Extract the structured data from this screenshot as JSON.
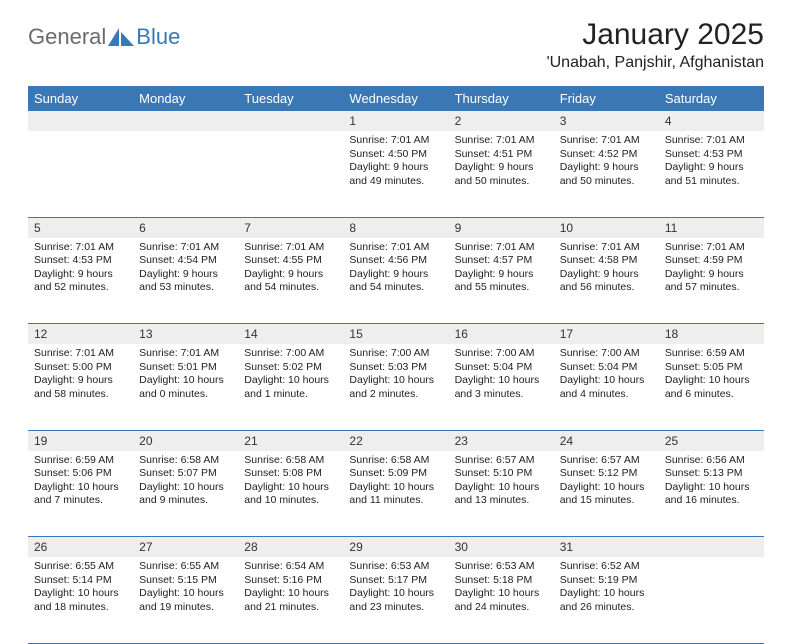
{
  "brand": {
    "part1": "General",
    "part2": "Blue"
  },
  "title": "January 2025",
  "location": "'Unabah, Panjshir, Afghanistan",
  "colors": {
    "header_bg": "#3a78b5",
    "header_text": "#ffffff",
    "daynum_bg": "#eeeeee",
    "border": "#3a78b5",
    "logo_grey": "#6b6b6b",
    "logo_blue": "#3a78b5",
    "page_bg": "#ffffff"
  },
  "fonts": {
    "title_size": 30,
    "location_size": 16,
    "dayheader_size": 13,
    "body_size": 10.5
  },
  "day_headers": [
    "Sunday",
    "Monday",
    "Tuesday",
    "Wednesday",
    "Thursday",
    "Friday",
    "Saturday"
  ],
  "weeks": [
    {
      "nums": [
        "",
        "",
        "",
        "1",
        "2",
        "3",
        "4"
      ],
      "cells": [
        null,
        null,
        null,
        {
          "sunrise": "Sunrise: 7:01 AM",
          "sunset": "Sunset: 4:50 PM",
          "daylight": "Daylight: 9 hours and 49 minutes."
        },
        {
          "sunrise": "Sunrise: 7:01 AM",
          "sunset": "Sunset: 4:51 PM",
          "daylight": "Daylight: 9 hours and 50 minutes."
        },
        {
          "sunrise": "Sunrise: 7:01 AM",
          "sunset": "Sunset: 4:52 PM",
          "daylight": "Daylight: 9 hours and 50 minutes."
        },
        {
          "sunrise": "Sunrise: 7:01 AM",
          "sunset": "Sunset: 4:53 PM",
          "daylight": "Daylight: 9 hours and 51 minutes."
        }
      ]
    },
    {
      "nums": [
        "5",
        "6",
        "7",
        "8",
        "9",
        "10",
        "11"
      ],
      "cells": [
        {
          "sunrise": "Sunrise: 7:01 AM",
          "sunset": "Sunset: 4:53 PM",
          "daylight": "Daylight: 9 hours and 52 minutes."
        },
        {
          "sunrise": "Sunrise: 7:01 AM",
          "sunset": "Sunset: 4:54 PM",
          "daylight": "Daylight: 9 hours and 53 minutes."
        },
        {
          "sunrise": "Sunrise: 7:01 AM",
          "sunset": "Sunset: 4:55 PM",
          "daylight": "Daylight: 9 hours and 54 minutes."
        },
        {
          "sunrise": "Sunrise: 7:01 AM",
          "sunset": "Sunset: 4:56 PM",
          "daylight": "Daylight: 9 hours and 54 minutes."
        },
        {
          "sunrise": "Sunrise: 7:01 AM",
          "sunset": "Sunset: 4:57 PM",
          "daylight": "Daylight: 9 hours and 55 minutes."
        },
        {
          "sunrise": "Sunrise: 7:01 AM",
          "sunset": "Sunset: 4:58 PM",
          "daylight": "Daylight: 9 hours and 56 minutes."
        },
        {
          "sunrise": "Sunrise: 7:01 AM",
          "sunset": "Sunset: 4:59 PM",
          "daylight": "Daylight: 9 hours and 57 minutes."
        }
      ]
    },
    {
      "nums": [
        "12",
        "13",
        "14",
        "15",
        "16",
        "17",
        "18"
      ],
      "cells": [
        {
          "sunrise": "Sunrise: 7:01 AM",
          "sunset": "Sunset: 5:00 PM",
          "daylight": "Daylight: 9 hours and 58 minutes."
        },
        {
          "sunrise": "Sunrise: 7:01 AM",
          "sunset": "Sunset: 5:01 PM",
          "daylight": "Daylight: 10 hours and 0 minutes."
        },
        {
          "sunrise": "Sunrise: 7:00 AM",
          "sunset": "Sunset: 5:02 PM",
          "daylight": "Daylight: 10 hours and 1 minute."
        },
        {
          "sunrise": "Sunrise: 7:00 AM",
          "sunset": "Sunset: 5:03 PM",
          "daylight": "Daylight: 10 hours and 2 minutes."
        },
        {
          "sunrise": "Sunrise: 7:00 AM",
          "sunset": "Sunset: 5:04 PM",
          "daylight": "Daylight: 10 hours and 3 minutes."
        },
        {
          "sunrise": "Sunrise: 7:00 AM",
          "sunset": "Sunset: 5:04 PM",
          "daylight": "Daylight: 10 hours and 4 minutes."
        },
        {
          "sunrise": "Sunrise: 6:59 AM",
          "sunset": "Sunset: 5:05 PM",
          "daylight": "Daylight: 10 hours and 6 minutes."
        }
      ]
    },
    {
      "nums": [
        "19",
        "20",
        "21",
        "22",
        "23",
        "24",
        "25"
      ],
      "cells": [
        {
          "sunrise": "Sunrise: 6:59 AM",
          "sunset": "Sunset: 5:06 PM",
          "daylight": "Daylight: 10 hours and 7 minutes."
        },
        {
          "sunrise": "Sunrise: 6:58 AM",
          "sunset": "Sunset: 5:07 PM",
          "daylight": "Daylight: 10 hours and 9 minutes."
        },
        {
          "sunrise": "Sunrise: 6:58 AM",
          "sunset": "Sunset: 5:08 PM",
          "daylight": "Daylight: 10 hours and 10 minutes."
        },
        {
          "sunrise": "Sunrise: 6:58 AM",
          "sunset": "Sunset: 5:09 PM",
          "daylight": "Daylight: 10 hours and 11 minutes."
        },
        {
          "sunrise": "Sunrise: 6:57 AM",
          "sunset": "Sunset: 5:10 PM",
          "daylight": "Daylight: 10 hours and 13 minutes."
        },
        {
          "sunrise": "Sunrise: 6:57 AM",
          "sunset": "Sunset: 5:12 PM",
          "daylight": "Daylight: 10 hours and 15 minutes."
        },
        {
          "sunrise": "Sunrise: 6:56 AM",
          "sunset": "Sunset: 5:13 PM",
          "daylight": "Daylight: 10 hours and 16 minutes."
        }
      ]
    },
    {
      "nums": [
        "26",
        "27",
        "28",
        "29",
        "30",
        "31",
        ""
      ],
      "cells": [
        {
          "sunrise": "Sunrise: 6:55 AM",
          "sunset": "Sunset: 5:14 PM",
          "daylight": "Daylight: 10 hours and 18 minutes."
        },
        {
          "sunrise": "Sunrise: 6:55 AM",
          "sunset": "Sunset: 5:15 PM",
          "daylight": "Daylight: 10 hours and 19 minutes."
        },
        {
          "sunrise": "Sunrise: 6:54 AM",
          "sunset": "Sunset: 5:16 PM",
          "daylight": "Daylight: 10 hours and 21 minutes."
        },
        {
          "sunrise": "Sunrise: 6:53 AM",
          "sunset": "Sunset: 5:17 PM",
          "daylight": "Daylight: 10 hours and 23 minutes."
        },
        {
          "sunrise": "Sunrise: 6:53 AM",
          "sunset": "Sunset: 5:18 PM",
          "daylight": "Daylight: 10 hours and 24 minutes."
        },
        {
          "sunrise": "Sunrise: 6:52 AM",
          "sunset": "Sunset: 5:19 PM",
          "daylight": "Daylight: 10 hours and 26 minutes."
        },
        null
      ]
    }
  ]
}
